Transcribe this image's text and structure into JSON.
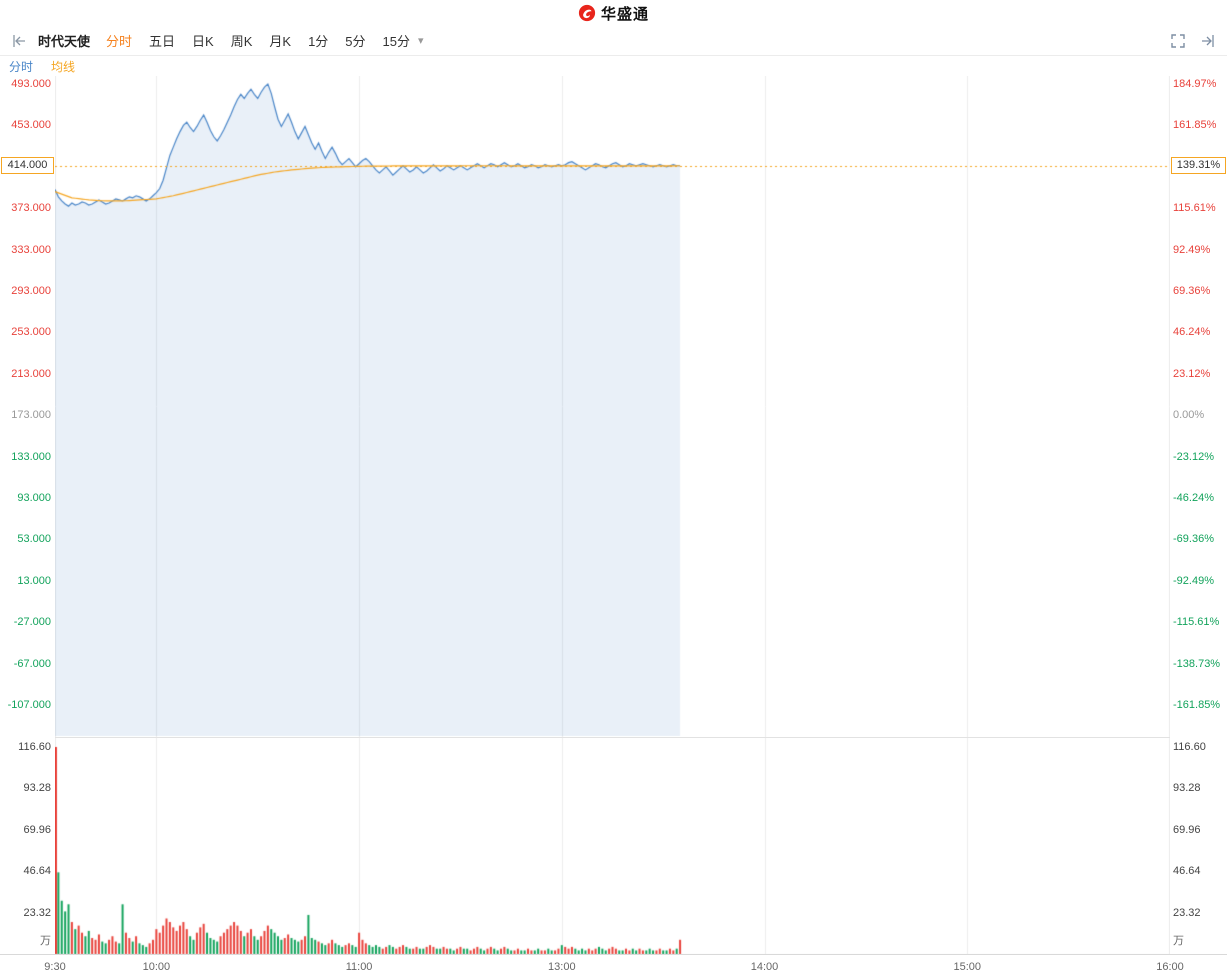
{
  "header": {
    "logo_text": "华盛通"
  },
  "toolbar": {
    "stock_name": "时代天使",
    "dropdown_icon": "▾",
    "periods": [
      {
        "label": "分时",
        "active": true
      },
      {
        "label": "五日",
        "active": false
      },
      {
        "label": "日K",
        "active": false
      },
      {
        "label": "周K",
        "active": false
      },
      {
        "label": "月K",
        "active": false
      },
      {
        "label": "1分",
        "active": false
      },
      {
        "label": "5分",
        "active": false
      },
      {
        "label": "15分",
        "active": false
      }
    ]
  },
  "legend": {
    "items": [
      {
        "label": "分时",
        "color": "#4a86c8"
      },
      {
        "label": "均线",
        "color": "#f5a623"
      }
    ]
  },
  "colors": {
    "up": "#e8423b",
    "down": "#13a35c",
    "neutral": "#999999",
    "accent": "#f5821f",
    "line_blue": "#4a86c8",
    "avg_orange": "#f5a623",
    "fill_blue": "rgba(74,134,200,0.12)",
    "grid": "#ececec",
    "volume_label": "#444444",
    "time_label": "#666666"
  },
  "chart_data": {
    "type": "line",
    "title": "时代天使 分时",
    "current": {
      "price": "414.000",
      "percent": "139.31%",
      "value": 414
    },
    "y_axis": {
      "prev_close": 173,
      "current_index": 2,
      "prices": [
        "493.000",
        "453.000",
        "414.000",
        "373.000",
        "333.000",
        "293.000",
        "253.000",
        "213.000",
        "173.000",
        "133.000",
        "93.000",
        "53.000",
        "13.000",
        "-27.000",
        "-67.000",
        "-107.000"
      ],
      "values": [
        493,
        453,
        414,
        373,
        333,
        293,
        253,
        213,
        173,
        133,
        93,
        53,
        13,
        -27,
        -67,
        -107
      ],
      "percents": [
        "184.97%",
        "161.85%",
        "139.31%",
        "115.61%",
        "92.49%",
        "69.36%",
        "46.24%",
        "23.12%",
        "0.00%",
        "-23.12%",
        "-46.24%",
        "-69.36%",
        "-92.49%",
        "-115.61%",
        "-138.73%",
        "-161.85%"
      ]
    },
    "volume_axis": {
      "labels": [
        "116.60",
        "93.28",
        "69.96",
        "46.64",
        "23.32"
      ],
      "values": [
        116.6,
        93.28,
        69.96,
        46.64,
        23.32
      ],
      "unit": "万"
    },
    "x_axis": {
      "labels": [
        "9:30",
        "10:00",
        "11:00",
        "13:00",
        "14:00",
        "15:00",
        "16:00"
      ],
      "minutes": [
        0,
        30,
        90,
        150,
        210,
        270,
        330
      ],
      "grid_minutes": [
        30,
        90,
        150,
        210,
        270
      ],
      "total_minutes": 330
    },
    "price_line": {
      "name": "分时",
      "start_minute": 0,
      "interval_minutes": 1,
      "values": [
        391,
        384,
        380,
        377,
        375,
        378,
        376,
        377,
        379,
        378,
        376,
        377,
        379,
        381,
        379,
        377,
        378,
        380,
        382,
        381,
        380,
        382,
        384,
        383,
        385,
        384,
        382,
        380,
        382,
        385,
        388,
        392,
        400,
        412,
        424,
        432,
        440,
        447,
        453,
        456,
        451,
        447,
        452,
        458,
        463,
        456,
        448,
        442,
        438,
        443,
        449,
        456,
        463,
        471,
        478,
        483,
        479,
        484,
        488,
        483,
        479,
        485,
        490,
        493,
        484,
        471,
        459,
        452,
        458,
        464,
        456,
        447,
        440,
        446,
        452,
        444,
        436,
        430,
        436,
        428,
        421,
        427,
        432,
        426,
        419,
        415,
        418,
        421,
        417,
        413,
        416,
        419,
        421,
        418,
        414,
        410,
        407,
        410,
        413,
        409,
        405,
        408,
        411,
        414,
        411,
        408,
        410,
        413,
        410,
        407,
        409,
        412,
        415,
        412,
        409,
        411,
        414,
        412,
        410,
        412,
        414,
        412,
        410,
        412,
        414,
        416,
        414,
        412,
        414,
        416,
        415,
        413,
        415,
        417,
        415,
        413,
        414,
        416,
        414,
        412,
        413,
        415,
        414,
        412,
        413,
        415,
        414,
        413,
        414,
        415,
        414,
        415,
        417,
        418,
        416,
        414,
        412,
        410,
        412,
        414,
        416,
        415,
        413,
        412,
        414,
        416,
        417,
        415,
        413,
        414,
        416,
        415,
        414,
        415,
        416,
        415,
        414,
        413,
        414,
        415,
        414,
        413,
        414,
        415,
        414,
        414
      ]
    },
    "avg_line": {
      "name": "均线",
      "minutes": [
        0,
        5,
        10,
        15,
        20,
        25,
        30,
        35,
        40,
        45,
        50,
        55,
        60,
        65,
        70,
        75,
        80,
        85,
        90,
        100,
        110,
        120,
        135,
        150,
        165,
        185
      ],
      "values": [
        389,
        383,
        381,
        380,
        380,
        381,
        382,
        385,
        389,
        393,
        397,
        401,
        405,
        408,
        410,
        411.5,
        412.5,
        413,
        413.5,
        413.8,
        413.9,
        414,
        414,
        413.8,
        413.9,
        414
      ]
    },
    "volume_bars": {
      "unit": "万",
      "values": [
        116.6,
        46,
        30,
        24,
        28,
        18,
        14,
        16,
        12,
        10,
        13,
        9,
        8,
        11,
        7,
        6,
        8,
        10,
        7,
        6,
        28,
        12,
        9,
        7,
        10,
        6,
        5,
        4,
        6,
        8,
        14,
        12,
        16,
        20,
        18,
        15,
        13,
        16,
        18,
        14,
        10,
        8,
        12,
        15,
        17,
        12,
        9,
        8,
        7,
        10,
        12,
        14,
        16,
        18,
        16,
        13,
        10,
        12,
        14,
        10,
        8,
        10,
        13,
        16,
        14,
        12,
        10,
        8,
        9,
        11,
        9,
        8,
        7,
        8,
        10,
        22,
        9,
        8,
        7,
        6,
        5,
        6,
        8,
        6,
        5,
        4,
        5,
        6,
        5,
        4,
        12,
        8,
        6,
        5,
        4,
        5,
        4,
        3,
        4,
        5,
        4,
        3,
        4,
        5,
        4,
        3,
        3,
        4,
        3,
        3,
        4,
        5,
        4,
        3,
        3,
        4,
        3,
        3,
        2,
        3,
        4,
        3,
        3,
        2,
        3,
        4,
        3,
        2,
        3,
        4,
        3,
        2,
        3,
        4,
        3,
        2,
        2,
        3,
        2,
        2,
        3,
        2,
        2,
        3,
        2,
        2,
        3,
        2,
        2,
        3,
        5,
        4,
        3,
        4,
        3,
        2,
        3,
        2,
        3,
        2,
        3,
        4,
        3,
        2,
        3,
        4,
        3,
        2,
        2,
        3,
        2,
        3,
        2,
        3,
        2,
        2,
        3,
        2,
        2,
        3,
        2,
        2,
        3,
        2,
        3,
        8
      ]
    }
  }
}
